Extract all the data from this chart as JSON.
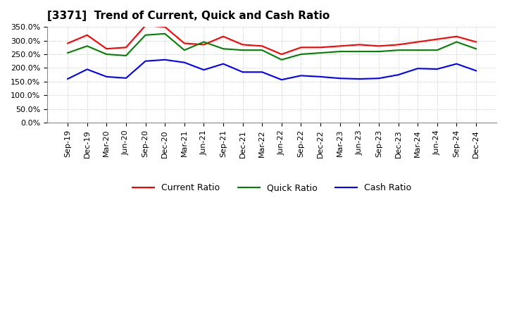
{
  "title": "[3371]  Trend of Current, Quick and Cash Ratio",
  "x_labels": [
    "Sep-19",
    "Dec-19",
    "Mar-20",
    "Jun-20",
    "Sep-20",
    "Dec-20",
    "Mar-21",
    "Jun-21",
    "Sep-21",
    "Dec-21",
    "Mar-22",
    "Jun-22",
    "Sep-22",
    "Dec-22",
    "Mar-23",
    "Jun-23",
    "Sep-23",
    "Dec-23",
    "Mar-24",
    "Jun-24",
    "Sep-24",
    "Dec-24"
  ],
  "current_ratio": [
    290,
    320,
    270,
    275,
    355,
    350,
    290,
    285,
    315,
    285,
    280,
    250,
    275,
    275,
    280,
    285,
    280,
    285,
    295,
    305,
    315,
    295
  ],
  "quick_ratio": [
    255,
    280,
    250,
    245,
    320,
    325,
    265,
    295,
    270,
    265,
    265,
    230,
    250,
    255,
    260,
    260,
    260,
    265,
    265,
    265,
    295,
    270
  ],
  "cash_ratio": [
    160,
    195,
    168,
    163,
    225,
    230,
    220,
    193,
    215,
    185,
    185,
    157,
    172,
    168,
    162,
    160,
    162,
    175,
    198,
    196,
    215,
    190
  ],
  "current_color": "#FF0000",
  "quick_color": "#008000",
  "cash_color": "#0000FF",
  "ylim": [
    0,
    350
  ],
  "yticks": [
    0,
    50,
    100,
    150,
    200,
    250,
    300,
    350
  ],
  "bg_color": "#FFFFFF",
  "grid_color": "#BBBBBB",
  "legend_labels": [
    "Current Ratio",
    "Quick Ratio",
    "Cash Ratio"
  ],
  "title_fontsize": 11,
  "tick_fontsize": 8,
  "legend_fontsize": 9
}
